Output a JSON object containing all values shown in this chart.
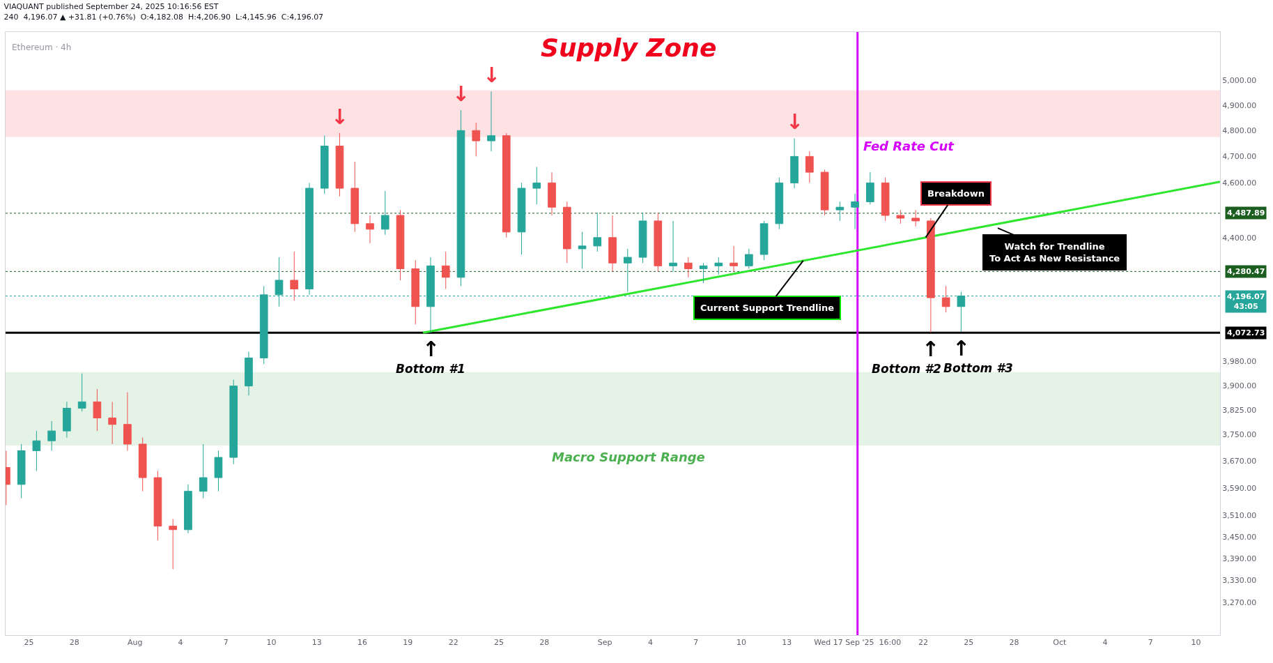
{
  "chart_data": {
    "type": "candlestick",
    "title": "VIAQUANT published September 24, 2025 10:16:56 EST",
    "subtitle": "240  4,196.07 ▲ +31.81 (+0.76%)  O:4,182.08  H:4,206.90  L:4,145.96  C:4,196.07",
    "log": true,
    "x": [
      "2025-07-23T12:00",
      "2025-07-24T12:00",
      "2025-07-25T12:00",
      "2025-07-26T12:00",
      "2025-07-27T12:00",
      "2025-07-28T12:00",
      "2025-07-29T12:00",
      "2025-07-30T12:00",
      "2025-07-31T12:00",
      "2025-08-01T12:00",
      "2025-08-02T12:00",
      "2025-08-03T12:00",
      "2025-08-04T12:00",
      "2025-08-05T12:00",
      "2025-08-06T12:00",
      "2025-08-07T12:00",
      "2025-08-08T12:00",
      "2025-08-09T12:00",
      "2025-08-10T12:00",
      "2025-08-11T12:00",
      "2025-08-12T12:00",
      "2025-08-13T12:00",
      "2025-08-14T12:00",
      "2025-08-15T12:00",
      "2025-08-16T12:00",
      "2025-08-17T12:00",
      "2025-08-18T12:00",
      "2025-08-19T12:00",
      "2025-08-20T12:00",
      "2025-08-21T12:00",
      "2025-08-22T12:00",
      "2025-08-23T12:00",
      "2025-08-24T12:00",
      "2025-08-25T12:00",
      "2025-08-26T12:00",
      "2025-08-27T12:00",
      "2025-08-28T12:00",
      "2025-08-29T12:00",
      "2025-08-30T12:00",
      "2025-08-31T12:00",
      "2025-09-01T12:00",
      "2025-09-02T12:00",
      "2025-09-03T12:00",
      "2025-09-04T12:00",
      "2025-09-05T12:00",
      "2025-09-06T12:00",
      "2025-09-07T12:00",
      "2025-09-08T12:00",
      "2025-09-09T12:00",
      "2025-09-10T12:00",
      "2025-09-11T12:00",
      "2025-09-12T12:00",
      "2025-09-13T12:00",
      "2025-09-14T12:00",
      "2025-09-15T12:00",
      "2025-09-16T12:00",
      "2025-09-17T12:00",
      "2025-09-18T12:00",
      "2025-09-19T12:00",
      "2025-09-20T12:00",
      "2025-09-21T12:00",
      "2025-09-22T12:00",
      "2025-09-23T12:00",
      "2025-09-24T12:00"
    ],
    "ohlc": [
      [
        3650,
        3700,
        3540,
        3600
      ],
      [
        3600,
        3720,
        3560,
        3700
      ],
      [
        3700,
        3760,
        3640,
        3730
      ],
      [
        3730,
        3790,
        3700,
        3760
      ],
      [
        3760,
        3850,
        3740,
        3830
      ],
      [
        3830,
        3940,
        3820,
        3850
      ],
      [
        3850,
        3890,
        3760,
        3800
      ],
      [
        3800,
        3850,
        3720,
        3780
      ],
      [
        3780,
        3880,
        3700,
        3720
      ],
      [
        3720,
        3740,
        3580,
        3620
      ],
      [
        3620,
        3640,
        3440,
        3480
      ],
      [
        3480,
        3500,
        3360,
        3470
      ],
      [
        3470,
        3600,
        3460,
        3580
      ],
      [
        3580,
        3720,
        3560,
        3620
      ],
      [
        3620,
        3700,
        3580,
        3680
      ],
      [
        3680,
        3920,
        3660,
        3900
      ],
      [
        3900,
        4010,
        3870,
        3990
      ],
      [
        3990,
        4230,
        3970,
        4200
      ],
      [
        4200,
        4330,
        4160,
        4250
      ],
      [
        4250,
        4350,
        4180,
        4220
      ],
      [
        4220,
        4600,
        4200,
        4580
      ],
      [
        4580,
        4780,
        4560,
        4740
      ],
      [
        4740,
        4790,
        4550,
        4580
      ],
      [
        4580,
        4680,
        4420,
        4450
      ],
      [
        4450,
        4480,
        4380,
        4430
      ],
      [
        4430,
        4570,
        4410,
        4480
      ],
      [
        4480,
        4500,
        4250,
        4290
      ],
      [
        4290,
        4320,
        4100,
        4160
      ],
      [
        4160,
        4330,
        4073,
        4300
      ],
      [
        4300,
        4350,
        4220,
        4260
      ],
      [
        4260,
        4880,
        4230,
        4800
      ],
      [
        4800,
        4830,
        4700,
        4760
      ],
      [
        4760,
        4955,
        4720,
        4780
      ],
      [
        4780,
        4790,
        4400,
        4420
      ],
      [
        4420,
        4600,
        4340,
        4580
      ],
      [
        4580,
        4660,
        4520,
        4600
      ],
      [
        4600,
        4640,
        4480,
        4510
      ],
      [
        4510,
        4530,
        4310,
        4360
      ],
      [
        4360,
        4420,
        4290,
        4370
      ],
      [
        4370,
        4490,
        4350,
        4400
      ],
      [
        4400,
        4480,
        4280,
        4310
      ],
      [
        4310,
        4360,
        4210,
        4330
      ],
      [
        4330,
        4490,
        4310,
        4460
      ],
      [
        4460,
        4490,
        4280,
        4300
      ],
      [
        4300,
        4460,
        4280,
        4310
      ],
      [
        4310,
        4330,
        4260,
        4290
      ],
      [
        4290,
        4310,
        4240,
        4300
      ],
      [
        4300,
        4330,
        4270,
        4310
      ],
      [
        4310,
        4370,
        4280,
        4300
      ],
      [
        4300,
        4360,
        4290,
        4340
      ],
      [
        4340,
        4460,
        4320,
        4450
      ],
      [
        4450,
        4620,
        4430,
        4600
      ],
      [
        4600,
        4770,
        4580,
        4700
      ],
      [
        4700,
        4720,
        4600,
        4640
      ],
      [
        4640,
        4650,
        4480,
        4500
      ],
      [
        4500,
        4530,
        4460,
        4510
      ],
      [
        4510,
        4560,
        4430,
        4530
      ],
      [
        4530,
        4640,
        4520,
        4600
      ],
      [
        4600,
        4620,
        4460,
        4480
      ],
      [
        4480,
        4500,
        4450,
        4470
      ],
      [
        4470,
        4500,
        4440,
        4460
      ],
      [
        4460,
        4470,
        4073,
        4190
      ],
      [
        4190,
        4230,
        4140,
        4160
      ],
      [
        4160,
        4210,
        4075,
        4196.07
      ]
    ],
    "series": [
      {
        "type": "line",
        "x": [
          "2025-08-20T00:00",
          "2025-10-11T14:00"
        ],
        "values": [
          4072.73,
          4604
        ],
        "color": "#2ee62e"
      }
    ],
    "xlim": [
      "2025-07-23T11:00",
      "2025-10-11T14:00"
    ],
    "xticks": [
      {
        "value": "2025-07-25",
        "label": "25"
      },
      {
        "value": "2025-07-28",
        "label": "28"
      },
      {
        "value": "2025-08-01",
        "label": "Aug"
      },
      {
        "value": "2025-08-04",
        "label": "4"
      },
      {
        "value": "2025-08-07",
        "label": "7"
      },
      {
        "value": "2025-08-10",
        "label": "10"
      },
      {
        "value": "2025-08-13",
        "label": "13"
      },
      {
        "value": "2025-08-16",
        "label": "16"
      },
      {
        "value": "2025-08-19",
        "label": "19"
      },
      {
        "value": "2025-08-22",
        "label": "22"
      },
      {
        "value": "2025-08-25",
        "label": "25"
      },
      {
        "value": "2025-08-28",
        "label": "28"
      },
      {
        "value": "2025-09-01",
        "label": "Sep"
      },
      {
        "value": "2025-09-04",
        "label": "4"
      },
      {
        "value": "2025-09-07",
        "label": "7"
      },
      {
        "value": "2025-09-10",
        "label": "10"
      },
      {
        "value": "2025-09-13",
        "label": "13"
      },
      {
        "value": "2025-09-17T16:00",
        "label": "Wed 17 Sep '25  16:00"
      },
      {
        "value": "2025-09-22",
        "label": "22"
      },
      {
        "value": "2025-09-25",
        "label": "25"
      },
      {
        "value": "2025-09-28",
        "label": "28"
      },
      {
        "value": "2025-10-01",
        "label": "Oct"
      },
      {
        "value": "2025-10-04",
        "label": "4"
      },
      {
        "value": "2025-10-07",
        "label": "7"
      },
      {
        "value": "2025-10-10",
        "label": "10"
      }
    ],
    "ylim": [
      3185,
      5200
    ],
    "yticks": [
      {
        "value": 3270,
        "label": "3,270.00"
      },
      {
        "value": 3330,
        "label": "3,330.00"
      },
      {
        "value": 3390,
        "label": "3,390.00"
      },
      {
        "value": 3450,
        "label": "3,450.00"
      },
      {
        "value": 3510,
        "label": "3,510.00"
      },
      {
        "value": 3590,
        "label": "3,590.00"
      },
      {
        "value": 3670,
        "label": "3,670.00"
      },
      {
        "value": 3750,
        "label": "3,750.00"
      },
      {
        "value": 3825,
        "label": "3,825.00"
      },
      {
        "value": 3900,
        "label": "3,900.00"
      },
      {
        "value": 3980,
        "label": "3,980.00"
      },
      {
        "value": 4400,
        "label": "4,400.00"
      },
      {
        "value": 4600,
        "label": "4,600.00"
      },
      {
        "value": 4700,
        "label": "4,700.00"
      },
      {
        "value": 4800,
        "label": "4,800.00"
      },
      {
        "value": 4900,
        "label": "4,900.00"
      },
      {
        "value": 5000,
        "label": "5,000.00"
      }
    ],
    "ref_lines": [
      {
        "axis": "y",
        "value": 4487.89,
        "label": "4,487.89",
        "color": "#1b5e20",
        "line_style": "dotted"
      },
      {
        "axis": "y",
        "value": 4280.47,
        "label": "4,280.47",
        "color": "#1b5e20",
        "line_style": "dotted"
      },
      {
        "axis": "y",
        "value": 4196.07,
        "label": "4,196.07\n43:05",
        "color": "#26a69a",
        "line_style": "dotted"
      },
      {
        "axis": "y",
        "value": 4072.73,
        "label": "4,072.73",
        "color": "#000000",
        "line_style": "solid"
      },
      {
        "axis": "x",
        "value": "2025-09-17T16:00",
        "label": "Fed Rate Cut",
        "color": "#d500f9",
        "line_style": "solid"
      }
    ],
    "bands": [
      {
        "axis": "y",
        "from": 4775,
        "to": 4960,
        "label": "Supply Zone",
        "color": "#f23645"
      },
      {
        "axis": "y",
        "from": 3716,
        "to": 3944,
        "label": "Macro Support Range",
        "color": "#4caf50"
      }
    ],
    "annotations": [
      "Ethereum · 4h",
      {
        "text": "↓",
        "x": "2025-08-14T12:00",
        "y": 4790
      },
      {
        "text": "↓",
        "x": "2025-08-22T12:00",
        "y": 4880
      },
      {
        "text": "↓",
        "x": "2025-08-24T12:00",
        "y": 4955
      },
      {
        "text": "↓",
        "x": "2025-09-13T12:00",
        "y": 4770
      },
      {
        "text": "↑",
        "x": "2025-08-20T12:00",
        "y": 4073
      },
      {
        "text": "↑",
        "x": "2025-09-22T12:00",
        "y": 4073
      },
      {
        "text": "↑",
        "x": "2025-09-24T12:00",
        "y": 4075
      },
      {
        "text": "Bottom #1",
        "x": "2025-08-20T12:00",
        "y": 4073
      },
      {
        "text": "Bottom #2",
        "x": "2025-09-22T12:00",
        "y": 4073
      },
      {
        "text": "Bottom #3",
        "x": "2025-09-24T12:00",
        "y": 4075
      },
      {
        "text": "Breakdown",
        "x": "2025-09-22T04:00",
        "y": 4401
      },
      {
        "text": "Current Support Trendline",
        "x": "2025-09-14T02:00",
        "y": 4318
      },
      {
        "text": "Watch for Trendline\nTo Act As New Resistance",
        "x": "2025-09-26T22:00",
        "y": 4434
      }
    ]
  }
}
